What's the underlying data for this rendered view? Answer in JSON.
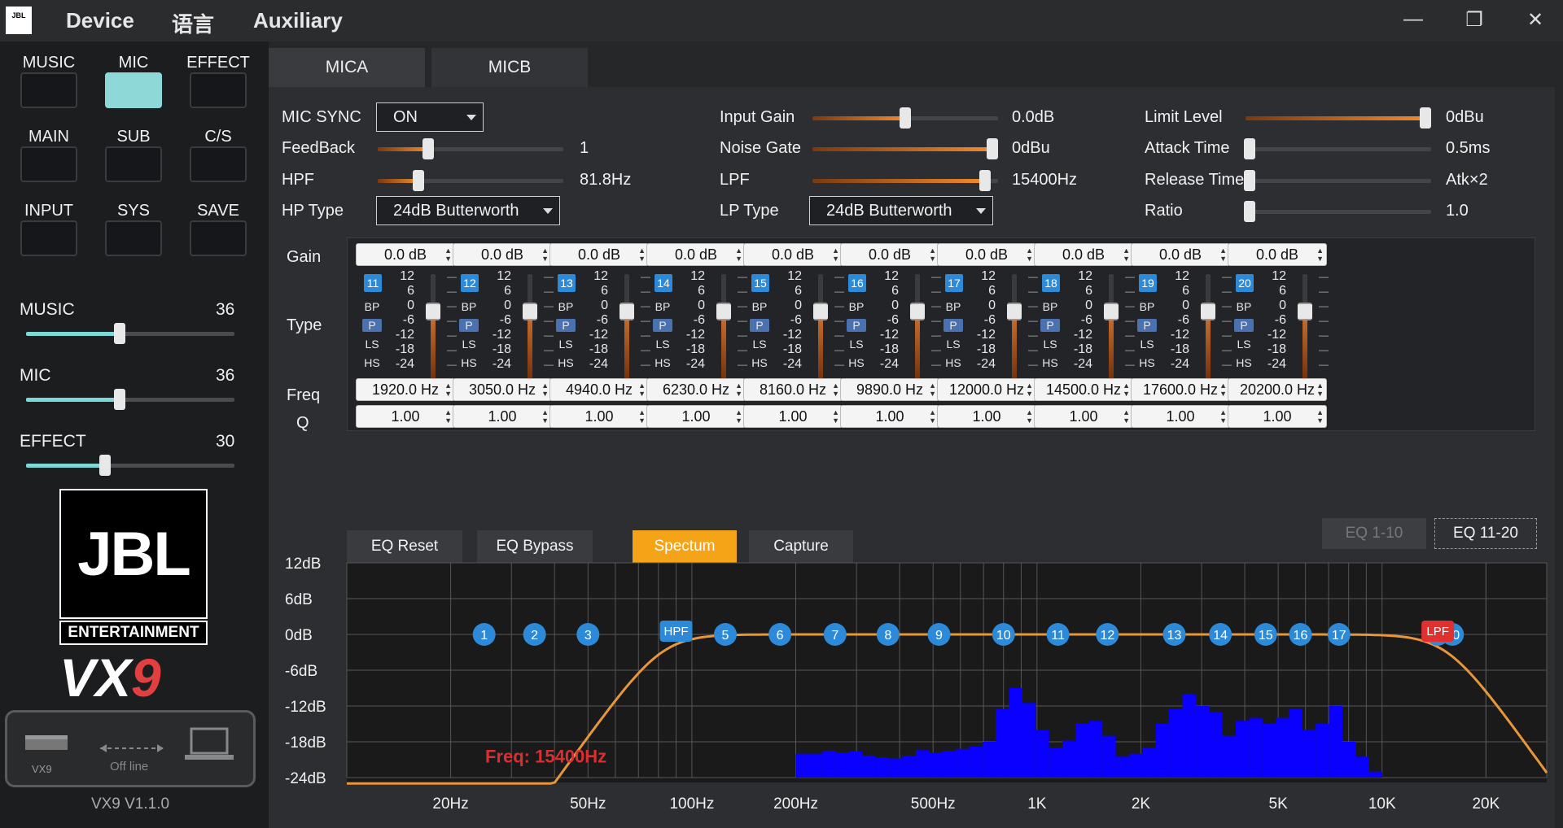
{
  "titlebar": {
    "logo_text": "JBL",
    "menus": [
      "Device",
      "语言",
      "Auxiliary"
    ],
    "window_controls": {
      "minimize": "—",
      "restore": "❐",
      "close": "✕"
    }
  },
  "sidebar": {
    "buttons": [
      {
        "label": "MUSIC",
        "active": false
      },
      {
        "label": "MIC",
        "active": true
      },
      {
        "label": "EFFECT",
        "active": false
      },
      {
        "label": "MAIN",
        "active": false
      },
      {
        "label": "SUB",
        "active": false
      },
      {
        "label": "C/S",
        "active": false
      },
      {
        "label": "INPUT",
        "active": false
      },
      {
        "label": "SYS",
        "active": false
      },
      {
        "label": "SAVE",
        "active": false
      }
    ],
    "volumes": [
      {
        "label": "MUSIC",
        "value": "36",
        "fraction": 0.45
      },
      {
        "label": "MIC",
        "value": "36",
        "fraction": 0.45
      },
      {
        "label": "EFFECT",
        "value": "30",
        "fraction": 0.38
      }
    ],
    "brand": {
      "logo": "JBL",
      "subtitle": "ENTERTAINMENT",
      "model_main": "VX",
      "model_num": "9"
    },
    "connection": {
      "device_label": "VX9",
      "status": "Off line"
    },
    "version": "VX9 V1.1.0"
  },
  "tabs": [
    {
      "label": "MICA",
      "active": true
    },
    {
      "label": "MICB",
      "active": false
    }
  ],
  "params": {
    "mic_sync_label": "MIC SYNC",
    "mic_sync_value": "ON",
    "feedback_label": "FeedBack",
    "feedback_value": "1",
    "feedback_fraction": 0.27,
    "hpf_label": "HPF",
    "hpf_value": "81.8Hz",
    "hpf_fraction": 0.22,
    "hp_type_label": "HP Type",
    "hp_type_value": "24dB Butterworth",
    "input_gain_label": "Input Gain",
    "input_gain_value": "0.0dB",
    "input_gain_fraction": 0.5,
    "noise_gate_label": "Noise Gate",
    "noise_gate_value": "0dBu",
    "noise_gate_fraction": 0.97,
    "lpf_label": "LPF",
    "lpf_value": "15400Hz",
    "lpf_fraction": 0.93,
    "lp_type_label": "LP Type",
    "lp_type_value": "24dB Butterworth",
    "limit_level_label": "Limit Level",
    "limit_level_value": "0dBu",
    "limit_level_fraction": 0.97,
    "attack_time_label": "Attack Time",
    "attack_time_value": "0.5ms",
    "attack_time_fraction": 0.0,
    "release_time_label": "Release Time",
    "release_time_value": "Atk×2",
    "release_time_fraction": 0.0,
    "ratio_label": "Ratio",
    "ratio_value": "1.0",
    "ratio_fraction": 0.0
  },
  "eq": {
    "row_labels": {
      "gain": "Gain",
      "type": "Type",
      "freq": "Freq",
      "q": "Q"
    },
    "type_options": [
      "BP",
      "P",
      "LS",
      "HS"
    ],
    "scale_ticks": [
      "12",
      "6",
      "0",
      "-6",
      "-12",
      "-18",
      "-24"
    ],
    "bands": [
      {
        "num": "11",
        "gain": "0.0 dB",
        "freq": "1920.0 Hz",
        "q": "1.00",
        "type": "P"
      },
      {
        "num": "12",
        "gain": "0.0 dB",
        "freq": "3050.0 Hz",
        "q": "1.00",
        "type": "P"
      },
      {
        "num": "13",
        "gain": "0.0 dB",
        "freq": "4940.0 Hz",
        "q": "1.00",
        "type": "P"
      },
      {
        "num": "14",
        "gain": "0.0 dB",
        "freq": "6230.0 Hz",
        "q": "1.00",
        "type": "P"
      },
      {
        "num": "15",
        "gain": "0.0 dB",
        "freq": "8160.0 Hz",
        "q": "1.00",
        "type": "P"
      },
      {
        "num": "16",
        "gain": "0.0 dB",
        "freq": "9890.0 Hz",
        "q": "1.00",
        "type": "P"
      },
      {
        "num": "17",
        "gain": "0.0 dB",
        "freq": "12000.0 Hz",
        "q": "1.00",
        "type": "P"
      },
      {
        "num": "18",
        "gain": "0.0 dB",
        "freq": "14500.0 Hz",
        "q": "1.00",
        "type": "P"
      },
      {
        "num": "19",
        "gain": "0.0 dB",
        "freq": "17600.0 Hz",
        "q": "1.00",
        "type": "P"
      },
      {
        "num": "20",
        "gain": "0.0 dB",
        "freq": "20200.0 Hz",
        "q": "1.00",
        "type": "P"
      }
    ],
    "buttons": {
      "reset": "EQ Reset",
      "bypass": "EQ Bypass",
      "spectrum": "Spectum",
      "capture": "Capture",
      "page1": "EQ 1-10",
      "page2": "EQ 11-20"
    }
  },
  "graph": {
    "y_labels": [
      "12dB",
      "6dB",
      "0dB",
      "-6dB",
      "-12dB",
      "-18dB",
      "-24dB"
    ],
    "x_labels": [
      "20Hz",
      "50Hz",
      "100Hz",
      "200Hz",
      "500Hz",
      "1K",
      "2K",
      "5K",
      "10K",
      "20K"
    ],
    "freq_readout": "Freq: 15400Hz",
    "hpf_marker": "HPF",
    "lpf_marker": "LPF",
    "band_markers": [
      "1",
      "2",
      "3",
      "5",
      "6",
      "7",
      "8",
      "9",
      "10",
      "11",
      "12",
      "13",
      "14",
      "15",
      "16",
      "17",
      "9",
      "20"
    ],
    "colors": {
      "curve": "#e8963a",
      "spectrum": "#0a00ff",
      "marker": "#2c8ad8",
      "lpf": "#e03030",
      "readout": "#d83030"
    }
  }
}
